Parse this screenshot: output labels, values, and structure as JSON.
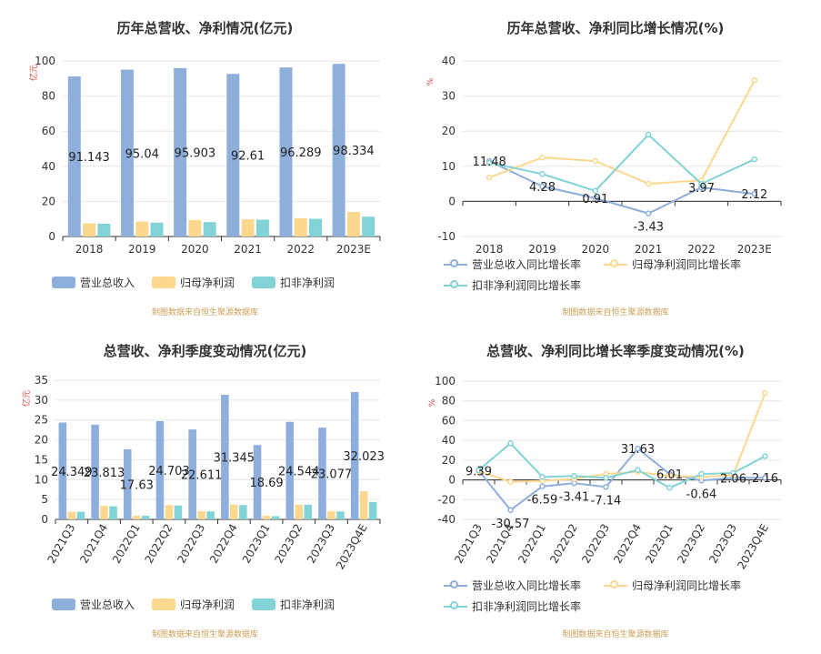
{
  "colors": {
    "revenue": "#8eaedc",
    "parent": "#fcd88f",
    "deducted": "#82d3d6",
    "grid": "#e6e6e6",
    "axis": "#6e7079",
    "unit": "#e03c3c"
  },
  "source_note": "制图数据来自恒生聚源数据库",
  "charts": {
    "annual_amount": {
      "title": "历年总营收、净利情况(亿元)",
      "unit": "亿元",
      "legend": [
        "营业总收入",
        "归母净利润",
        "扣非净利润"
      ]
    },
    "annual_growth": {
      "title": "历年总营收、净利同比增长情况(%)",
      "unit": "%",
      "legend": [
        "营业总收入同比增长率",
        "归母净利润同比增长率",
        "扣非净利润同比增长率"
      ]
    },
    "quarter_amount": {
      "title": "总营收、净利季度变动情况(亿元)",
      "unit": "亿元",
      "legend": [
        "营业总收入",
        "归母净利润",
        "扣非净利润"
      ]
    },
    "quarter_growth": {
      "title": "总营收、净利同比增长率季度变动情况(%)",
      "unit": "%",
      "legend": [
        "营业总收入同比增长率",
        "归母净利润同比增长率",
        "扣非净利润同比增长率"
      ]
    }
  },
  "chart_data": [
    {
      "type": "bar",
      "title": "历年总营收、净利情况(亿元)",
      "ylabel": "亿元",
      "categories": [
        "2018",
        "2019",
        "2020",
        "2021",
        "2022",
        "2023E"
      ],
      "ylim": [
        0,
        100
      ],
      "yticks": [
        0,
        20,
        40,
        60,
        80,
        100
      ],
      "series": [
        {
          "name": "营业总收入",
          "values": [
            91.143,
            95.04,
            95.903,
            92.61,
            96.289,
            98.334
          ],
          "labels": [
            "91.143",
            "95.04",
            "95.903",
            "92.61",
            "96.289",
            "98.334"
          ]
        },
        {
          "name": "归母净利润",
          "values": [
            7.5,
            8.5,
            9.4,
            9.8,
            10.4,
            14.0
          ]
        },
        {
          "name": "扣非净利润",
          "values": [
            7.3,
            7.9,
            8.2,
            9.6,
            10.1,
            11.3
          ]
        }
      ],
      "grid": true
    },
    {
      "type": "line",
      "title": "历年总营收、净利同比增长情况(%)",
      "ylabel": "%",
      "categories": [
        "2018",
        "2019",
        "2020",
        "2021",
        "2022",
        "2023E"
      ],
      "ylim": [
        -10,
        40
      ],
      "yticks": [
        -10,
        0,
        10,
        20,
        30,
        40
      ],
      "series": [
        {
          "name": "营业总收入同比增长率",
          "values": [
            11.48,
            4.28,
            0.91,
            -3.43,
            3.97,
            2.12
          ],
          "labels": [
            "11.48",
            "4.28",
            "0.91",
            "-3.43",
            "3.97",
            "2.12"
          ]
        },
        {
          "name": "归母净利润同比增长率",
          "values": [
            6.8,
            12.5,
            11.5,
            5.0,
            6.0,
            34.5
          ]
        },
        {
          "name": "扣非净利润同比增长率",
          "values": [
            11.0,
            7.8,
            3.0,
            19.0,
            5.0,
            12.0
          ]
        }
      ],
      "grid": true
    },
    {
      "type": "bar",
      "title": "总营收、净利季度变动情况(亿元)",
      "ylabel": "亿元",
      "categories": [
        "2021Q3",
        "2021Q4",
        "2022Q1",
        "2022Q2",
        "2022Q3",
        "2022Q4",
        "2023Q1",
        "2023Q2",
        "2023Q3",
        "2023Q4E"
      ],
      "ylim": [
        0,
        35
      ],
      "yticks": [
        0,
        5,
        10,
        15,
        20,
        25,
        30,
        35
      ],
      "series": [
        {
          "name": "营业总收入",
          "values": [
            24.349,
            23.813,
            17.63,
            24.703,
            22.611,
            31.345,
            18.69,
            24.544,
            23.077,
            32.023
          ],
          "labels": [
            "24.349",
            "23.813",
            "17.63",
            "24.703",
            "22.611",
            "31.345",
            "18.69",
            "24.544",
            "23.077",
            "32.023"
          ]
        },
        {
          "name": "归母净利润",
          "values": [
            1.9,
            3.4,
            0.9,
            3.6,
            2.1,
            3.7,
            0.9,
            3.7,
            2.1,
            7.1
          ]
        },
        {
          "name": "扣非净利润",
          "values": [
            1.9,
            3.3,
            0.9,
            3.5,
            2.0,
            3.6,
            0.8,
            3.7,
            2.0,
            4.4
          ]
        }
      ],
      "grid": true
    },
    {
      "type": "line",
      "title": "总营收、净利同比增长率季度变动情况(%)",
      "ylabel": "%",
      "categories": [
        "2021Q3",
        "2021Q4",
        "2022Q1",
        "2022Q2",
        "2022Q3",
        "2022Q4",
        "2023Q1",
        "2023Q2",
        "2023Q3",
        "2023Q4E"
      ],
      "ylim": [
        -40,
        100
      ],
      "yticks": [
        -40,
        -20,
        0,
        20,
        40,
        60,
        80,
        100
      ],
      "series": [
        {
          "name": "营业总收入同比增长率",
          "values": [
            9.39,
            -30.57,
            -6.59,
            -3.41,
            -7.14,
            31.63,
            6.01,
            -0.64,
            2.06,
            2.16
          ],
          "labels": [
            "9.39",
            "-30.57",
            "-6.59",
            "-3.41",
            "-7.14",
            "31.63",
            "6.01",
            "-0.64",
            "2.06",
            "2.16"
          ]
        },
        {
          "name": "归母净利润同比增长率",
          "values": [
            9.0,
            -2.0,
            -1.0,
            1.0,
            6.0,
            8.0,
            4.0,
            3.0,
            5.0,
            88.0
          ]
        },
        {
          "name": "扣非净利润同比增长率",
          "values": [
            10.0,
            37.0,
            3.0,
            4.0,
            2.0,
            10.0,
            -8.0,
            6.0,
            7.0,
            24.0
          ]
        }
      ],
      "grid": true
    }
  ]
}
